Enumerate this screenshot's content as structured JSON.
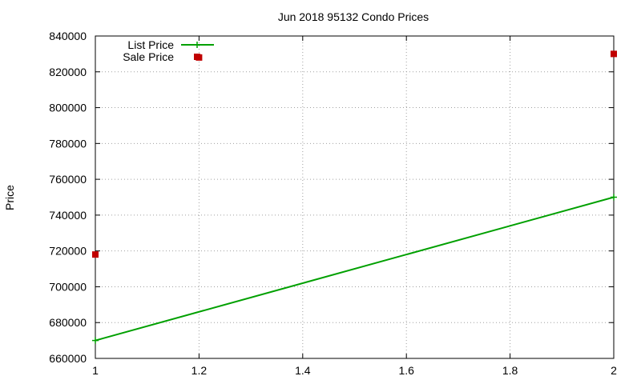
{
  "chart_data": {
    "type": "line",
    "title": "Jun 2018 95132 Condo Prices",
    "xlabel": "",
    "ylabel": "Price",
    "xlim": [
      1,
      2
    ],
    "ylim": [
      660000,
      840000
    ],
    "x_ticks": [
      1,
      1.2,
      1.4,
      1.6,
      1.8,
      2
    ],
    "x_tick_labels": [
      "1",
      "1.2",
      "1.4",
      "1.6",
      "1.8",
      "2"
    ],
    "y_ticks": [
      660000,
      680000,
      700000,
      720000,
      740000,
      760000,
      780000,
      800000,
      820000,
      840000
    ],
    "y_tick_labels": [
      "660000",
      "680000",
      "700000",
      "720000",
      "740000",
      "760000",
      "780000",
      "800000",
      "820000",
      "840000"
    ],
    "grid": true,
    "legend_position": "top-left",
    "series": [
      {
        "name": "List Price",
        "style": "line-points",
        "marker": "plus",
        "color": "#00a000",
        "points": [
          [
            1,
            670000
          ],
          [
            2,
            750000
          ]
        ]
      },
      {
        "name": "Sale Price",
        "style": "points",
        "marker": "square",
        "color": "#c00000",
        "points": [
          [
            1,
            718000
          ],
          [
            1.2,
            828000
          ],
          [
            2,
            830000
          ]
        ]
      }
    ]
  }
}
